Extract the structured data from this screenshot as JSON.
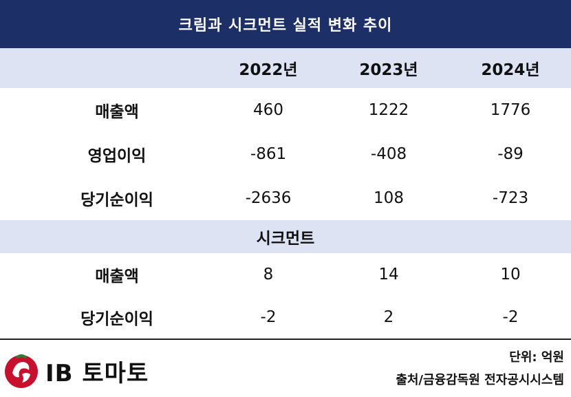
{
  "title": "크림과 시크먼트 실적 변화 추이",
  "headers": [
    "2022년",
    "2023년",
    "2024년"
  ],
  "kream_rows": [
    {
      "label": "매출액",
      "values": [
        "460",
        "1222",
        "1776"
      ]
    },
    {
      "label": "영업이익",
      "values": [
        "-861",
        "-408",
        "-89"
      ]
    },
    {
      "label": "당기순이익",
      "values": [
        "-2636",
        "108",
        "-723"
      ]
    }
  ],
  "section_label": "시크먼트",
  "sikment_rows": [
    {
      "label": "매출액",
      "values": [
        "8",
        "14",
        "10"
      ]
    },
    {
      "label": "당기순이익",
      "values": [
        "-2",
        "2",
        "-2"
      ]
    }
  ],
  "unit": "단위: 억원",
  "source": "출처/금융감독원 전자공시시스템",
  "logo_text": "IB 토마토",
  "colors": {
    "title_bg": "#1d2f67",
    "band_bg": "#dde3f3",
    "logo_red": "#c8102e"
  }
}
